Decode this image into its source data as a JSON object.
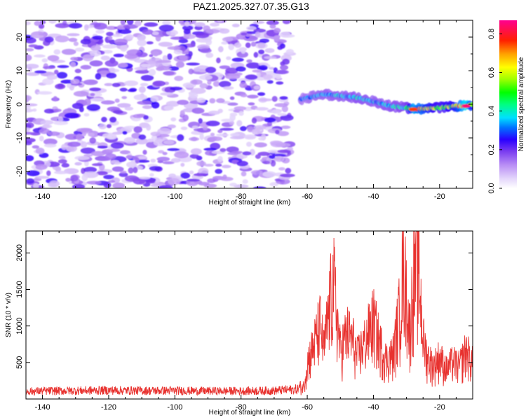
{
  "title": "PAZ1.2025.327.07.35.G13",
  "chart_data": [
    {
      "type": "heatmap",
      "xlabel": "Height of straight line (km)",
      "ylabel": "Frequency (Hz)",
      "xlim": [
        -145,
        -10
      ],
      "ylim": [
        -25,
        25
      ],
      "xticks": [
        -140,
        -120,
        -100,
        -80,
        -60,
        -40,
        -20
      ],
      "yticks": [
        -20,
        -10,
        0,
        10,
        20
      ],
      "colorbar": {
        "label": "Normalized spectral amplitude",
        "range": [
          0,
          0.87
        ],
        "ticks": [
          0.0,
          0.2,
          0.4,
          0.6,
          0.8
        ]
      },
      "description_data": {
        "noise_region_x": [
          -145,
          -65
        ],
        "noise_amplitude_range": [
          0.05,
          0.25
        ],
        "signal_ridge": [
          {
            "x": -62,
            "freq": 1.5,
            "amp": 0.3
          },
          {
            "x": -55,
            "freq": 3.0,
            "amp": 0.35
          },
          {
            "x": -50,
            "freq": 2.5,
            "amp": 0.35
          },
          {
            "x": -45,
            "freq": 2.0,
            "amp": 0.38
          },
          {
            "x": -40,
            "freq": 0.8,
            "amp": 0.35
          },
          {
            "x": -35,
            "freq": -0.5,
            "amp": 0.38
          },
          {
            "x": -30,
            "freq": -1.0,
            "amp": 0.4
          },
          {
            "x": -28,
            "freq": -1.5,
            "amp": 0.75
          },
          {
            "x": -20,
            "freq": -1.0,
            "amp": 0.5
          },
          {
            "x": -15,
            "freq": -0.5,
            "amp": 0.6
          },
          {
            "x": -12,
            "freq": -0.5,
            "amp": 0.85
          },
          {
            "x": -10,
            "freq": 0.0,
            "amp": 0.55
          }
        ]
      }
    },
    {
      "type": "line",
      "xlabel": "Height of straight line (km)",
      "ylabel": "SNR (10 * v/v)",
      "xlim": [
        -145,
        -10
      ],
      "ylim": [
        0,
        2300
      ],
      "xticks": [
        -140,
        -120,
        -100,
        -80,
        -60,
        -40,
        -20
      ],
      "yticks": [
        500,
        1000,
        1500,
        2000
      ],
      "series": [
        {
          "name": "SNR",
          "color": "#e8322f",
          "x": [
            -145,
            -140,
            -130,
            -120,
            -110,
            -100,
            -90,
            -80,
            -70,
            -63,
            -61,
            -60,
            -58,
            -56,
            -55,
            -53,
            -52,
            -50,
            -48,
            -46,
            -45,
            -43,
            -40,
            -38,
            -36,
            -34,
            -32,
            -31,
            -30,
            -29,
            -28,
            -27,
            -26,
            -25,
            -24,
            -22,
            -20,
            -18,
            -16,
            -14,
            -12,
            -10
          ],
          "values": [
            110,
            115,
            120,
            125,
            120,
            120,
            115,
            115,
            120,
            140,
            220,
            600,
            900,
            1250,
            800,
            1650,
            1900,
            800,
            1100,
            950,
            700,
            900,
            1300,
            900,
            650,
            750,
            1500,
            2300,
            1700,
            1100,
            2000,
            2300,
            1900,
            1000,
            750,
            550,
            700,
            500,
            620,
            550,
            800,
            600
          ]
        }
      ]
    }
  ]
}
